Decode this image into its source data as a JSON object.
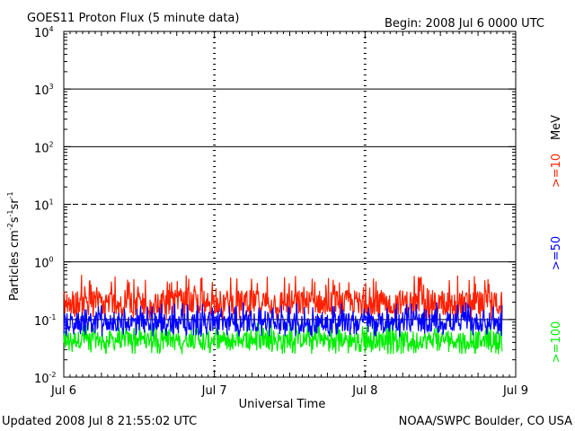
{
  "chart_data": {
    "type": "line",
    "title": "GOES11 Proton Flux (5 minute data)",
    "begin_label": "Begin: 2008 Jul 6 0000 UTC",
    "xlabel": "Universal Time",
    "ylabel": "Particles cm⁻²s⁻¹sr⁻¹",
    "unit_label": "MeV",
    "x_ticks": [
      "Jul 6",
      "Jul 7",
      "Jul 8",
      "Jul 9"
    ],
    "x_range_days": [
      0,
      3
    ],
    "y_scale": "log",
    "y_range": [
      0.01,
      10000
    ],
    "y_ticks": [
      {
        "base": "10",
        "exp": "-2"
      },
      {
        "base": "10",
        "exp": "-1"
      },
      {
        "base": "10",
        "exp": "0"
      },
      {
        "base": "10",
        "exp": "1"
      },
      {
        "base": "10",
        "exp": "2"
      },
      {
        "base": "10",
        "exp": "3"
      },
      {
        "base": "10",
        "exp": "4"
      }
    ],
    "grid": "solid lines at 10^-1, 10^0, 10^2, 10^3; dashed at 10^1; dashed day separators",
    "series": [
      {
        "name": ">=10",
        "color": "#ff2000",
        "approx_median": 0.2,
        "approx_range": [
          0.1,
          0.6
        ]
      },
      {
        "name": ">=50",
        "color": "#0000ff",
        "approx_median": 0.09,
        "approx_range": [
          0.05,
          0.2
        ]
      },
      {
        "name": ">=100",
        "color": "#00ee00",
        "approx_median": 0.045,
        "approx_range": [
          0.025,
          0.09
        ]
      }
    ],
    "data_end_day": 2.91
  },
  "footer": {
    "updated": "Updated 2008 Jul  8 21:55:02 UTC",
    "source": "NOAA/SWPC Boulder, CO USA"
  }
}
